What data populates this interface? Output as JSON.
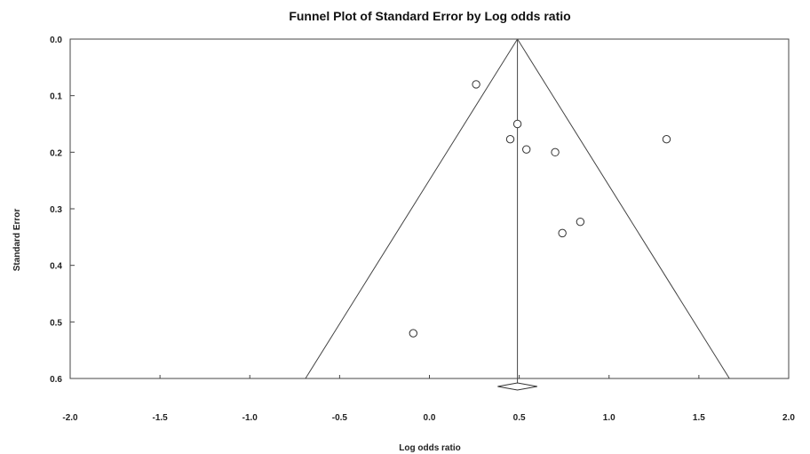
{
  "chart_data": {
    "type": "scatter",
    "title": "Funnel Plot of Standard Error by Log odds ratio",
    "xlabel": "Log odds ratio",
    "ylabel": "Standard Error",
    "xlim": [
      -2.0,
      2.0
    ],
    "ylim": [
      0.0,
      0.6
    ],
    "y_inverted": true,
    "x_ticks": [
      "-2.0",
      "-1.5",
      "-1.0",
      "-0.5",
      "0.0",
      "0.5",
      "1.0",
      "1.5",
      "2.0"
    ],
    "y_ticks": [
      "0.0",
      "0.1",
      "0.2",
      "0.3",
      "0.4",
      "0.5",
      "0.6"
    ],
    "pooled_estimate": 0.49,
    "funnel_at_max_se": [
      -0.69,
      1.67
    ],
    "points": [
      {
        "x": 0.26,
        "y": 0.08
      },
      {
        "x": 0.49,
        "y": 0.15
      },
      {
        "x": 0.45,
        "y": 0.177
      },
      {
        "x": 0.54,
        "y": 0.195
      },
      {
        "x": 0.7,
        "y": 0.2
      },
      {
        "x": 1.32,
        "y": 0.177
      },
      {
        "x": 0.84,
        "y": 0.323
      },
      {
        "x": 0.74,
        "y": 0.343
      },
      {
        "x": -0.09,
        "y": 0.52
      }
    ],
    "grid": false,
    "marker": "open-circle",
    "color": "#444444"
  }
}
